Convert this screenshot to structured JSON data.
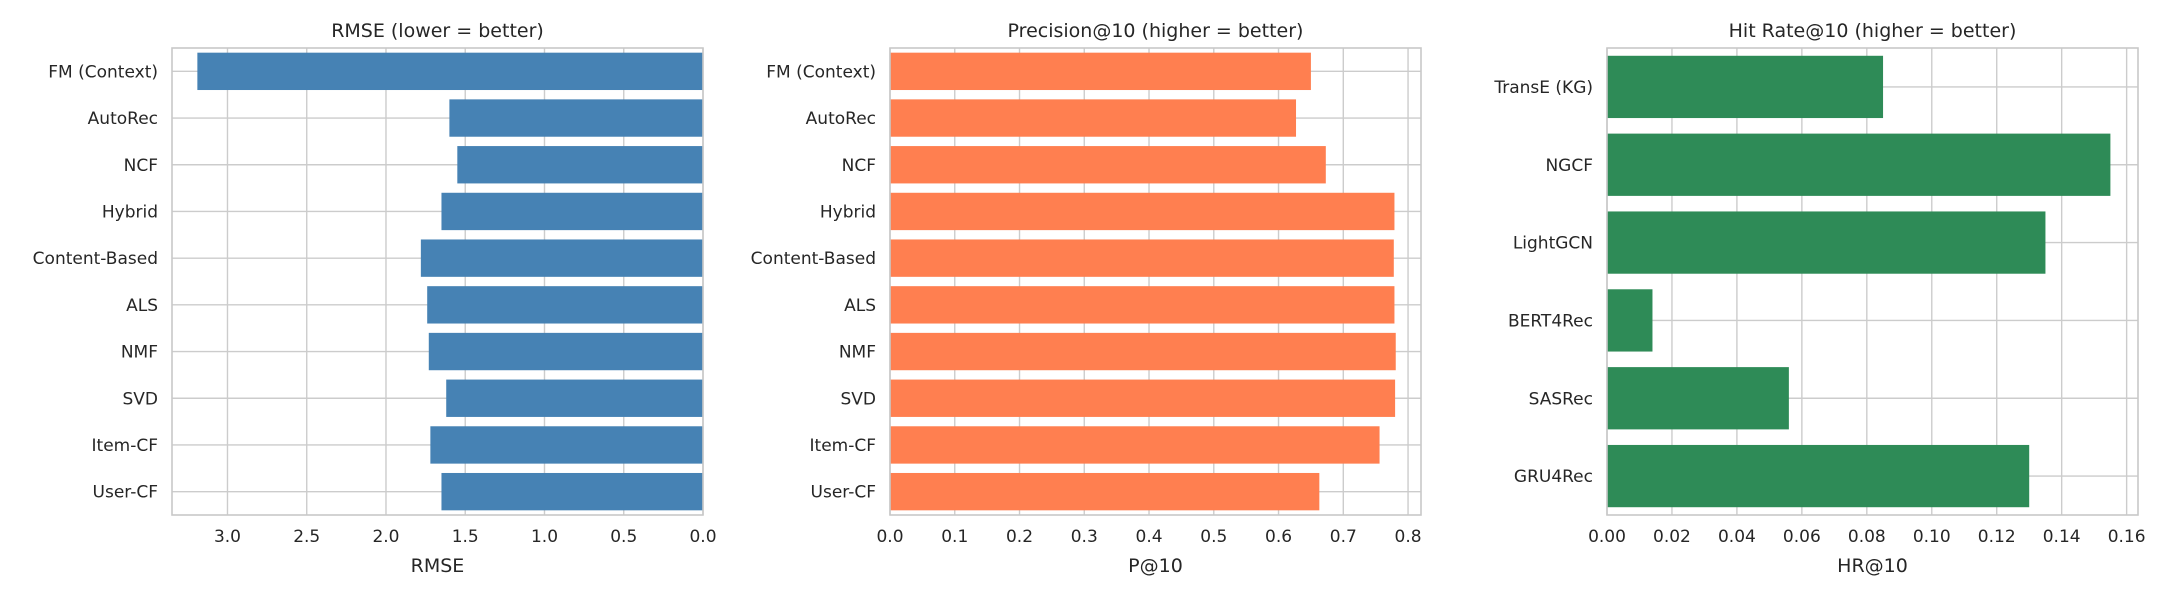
{
  "chart_data": [
    {
      "type": "bar",
      "orientation": "horizontal",
      "title": "RMSE (lower = better)",
      "xlabel": "RMSE",
      "ylabel": "",
      "color": "#4682b4",
      "x_inverted": true,
      "xlim": [
        3.35,
        0.0
      ],
      "xticks": [
        3.0,
        2.5,
        2.0,
        1.5,
        1.0,
        0.5,
        0.0
      ],
      "xtick_labels": [
        "3.0",
        "2.5",
        "2.0",
        "1.5",
        "1.0",
        "0.5",
        "0.0"
      ],
      "grid": true,
      "categories": [
        "FM (Context)",
        "AutoRec",
        "NCF",
        "Hybrid",
        "Content-Based",
        "ALS",
        "NMF",
        "SVD",
        "Item-CF",
        "User-CF"
      ],
      "values": [
        3.19,
        1.6,
        1.55,
        1.65,
        1.78,
        1.74,
        1.73,
        1.62,
        1.72,
        1.65
      ]
    },
    {
      "type": "bar",
      "orientation": "horizontal",
      "title": "Precision@10 (higher = better)",
      "xlabel": "P@10",
      "ylabel": "",
      "color": "#ff7f50",
      "x_inverted": false,
      "xlim": [
        0.0,
        0.82
      ],
      "xticks": [
        0.0,
        0.1,
        0.2,
        0.3,
        0.4,
        0.5,
        0.6,
        0.7,
        0.8
      ],
      "xtick_labels": [
        "0.0",
        "0.1",
        "0.2",
        "0.3",
        "0.4",
        "0.5",
        "0.6",
        "0.7",
        "0.8"
      ],
      "grid": true,
      "categories": [
        "FM (Context)",
        "AutoRec",
        "NCF",
        "Hybrid",
        "Content-Based",
        "ALS",
        "NMF",
        "SVD",
        "Item-CF",
        "User-CF"
      ],
      "values": [
        0.65,
        0.627,
        0.673,
        0.779,
        0.778,
        0.779,
        0.781,
        0.78,
        0.756,
        0.663
      ]
    },
    {
      "type": "bar",
      "orientation": "horizontal",
      "title": "Hit Rate@10 (higher = better)",
      "xlabel": "HR@10",
      "ylabel": "",
      "color": "#2e8b57",
      "x_inverted": false,
      "xlim": [
        0.0,
        0.1635
      ],
      "xticks": [
        0.0,
        0.02,
        0.04,
        0.06,
        0.08,
        0.1,
        0.12,
        0.14,
        0.16
      ],
      "xtick_labels": [
        "0.00",
        "0.02",
        "0.04",
        "0.06",
        "0.08",
        "0.10",
        "0.12",
        "0.14",
        "0.16"
      ],
      "grid": true,
      "categories": [
        "TransE (KG)",
        "NGCF",
        "LightGCN",
        "BERT4Rec",
        "SASRec",
        "GRU4Rec"
      ],
      "values": [
        0.085,
        0.155,
        0.135,
        0.014,
        0.056,
        0.13
      ]
    }
  ]
}
